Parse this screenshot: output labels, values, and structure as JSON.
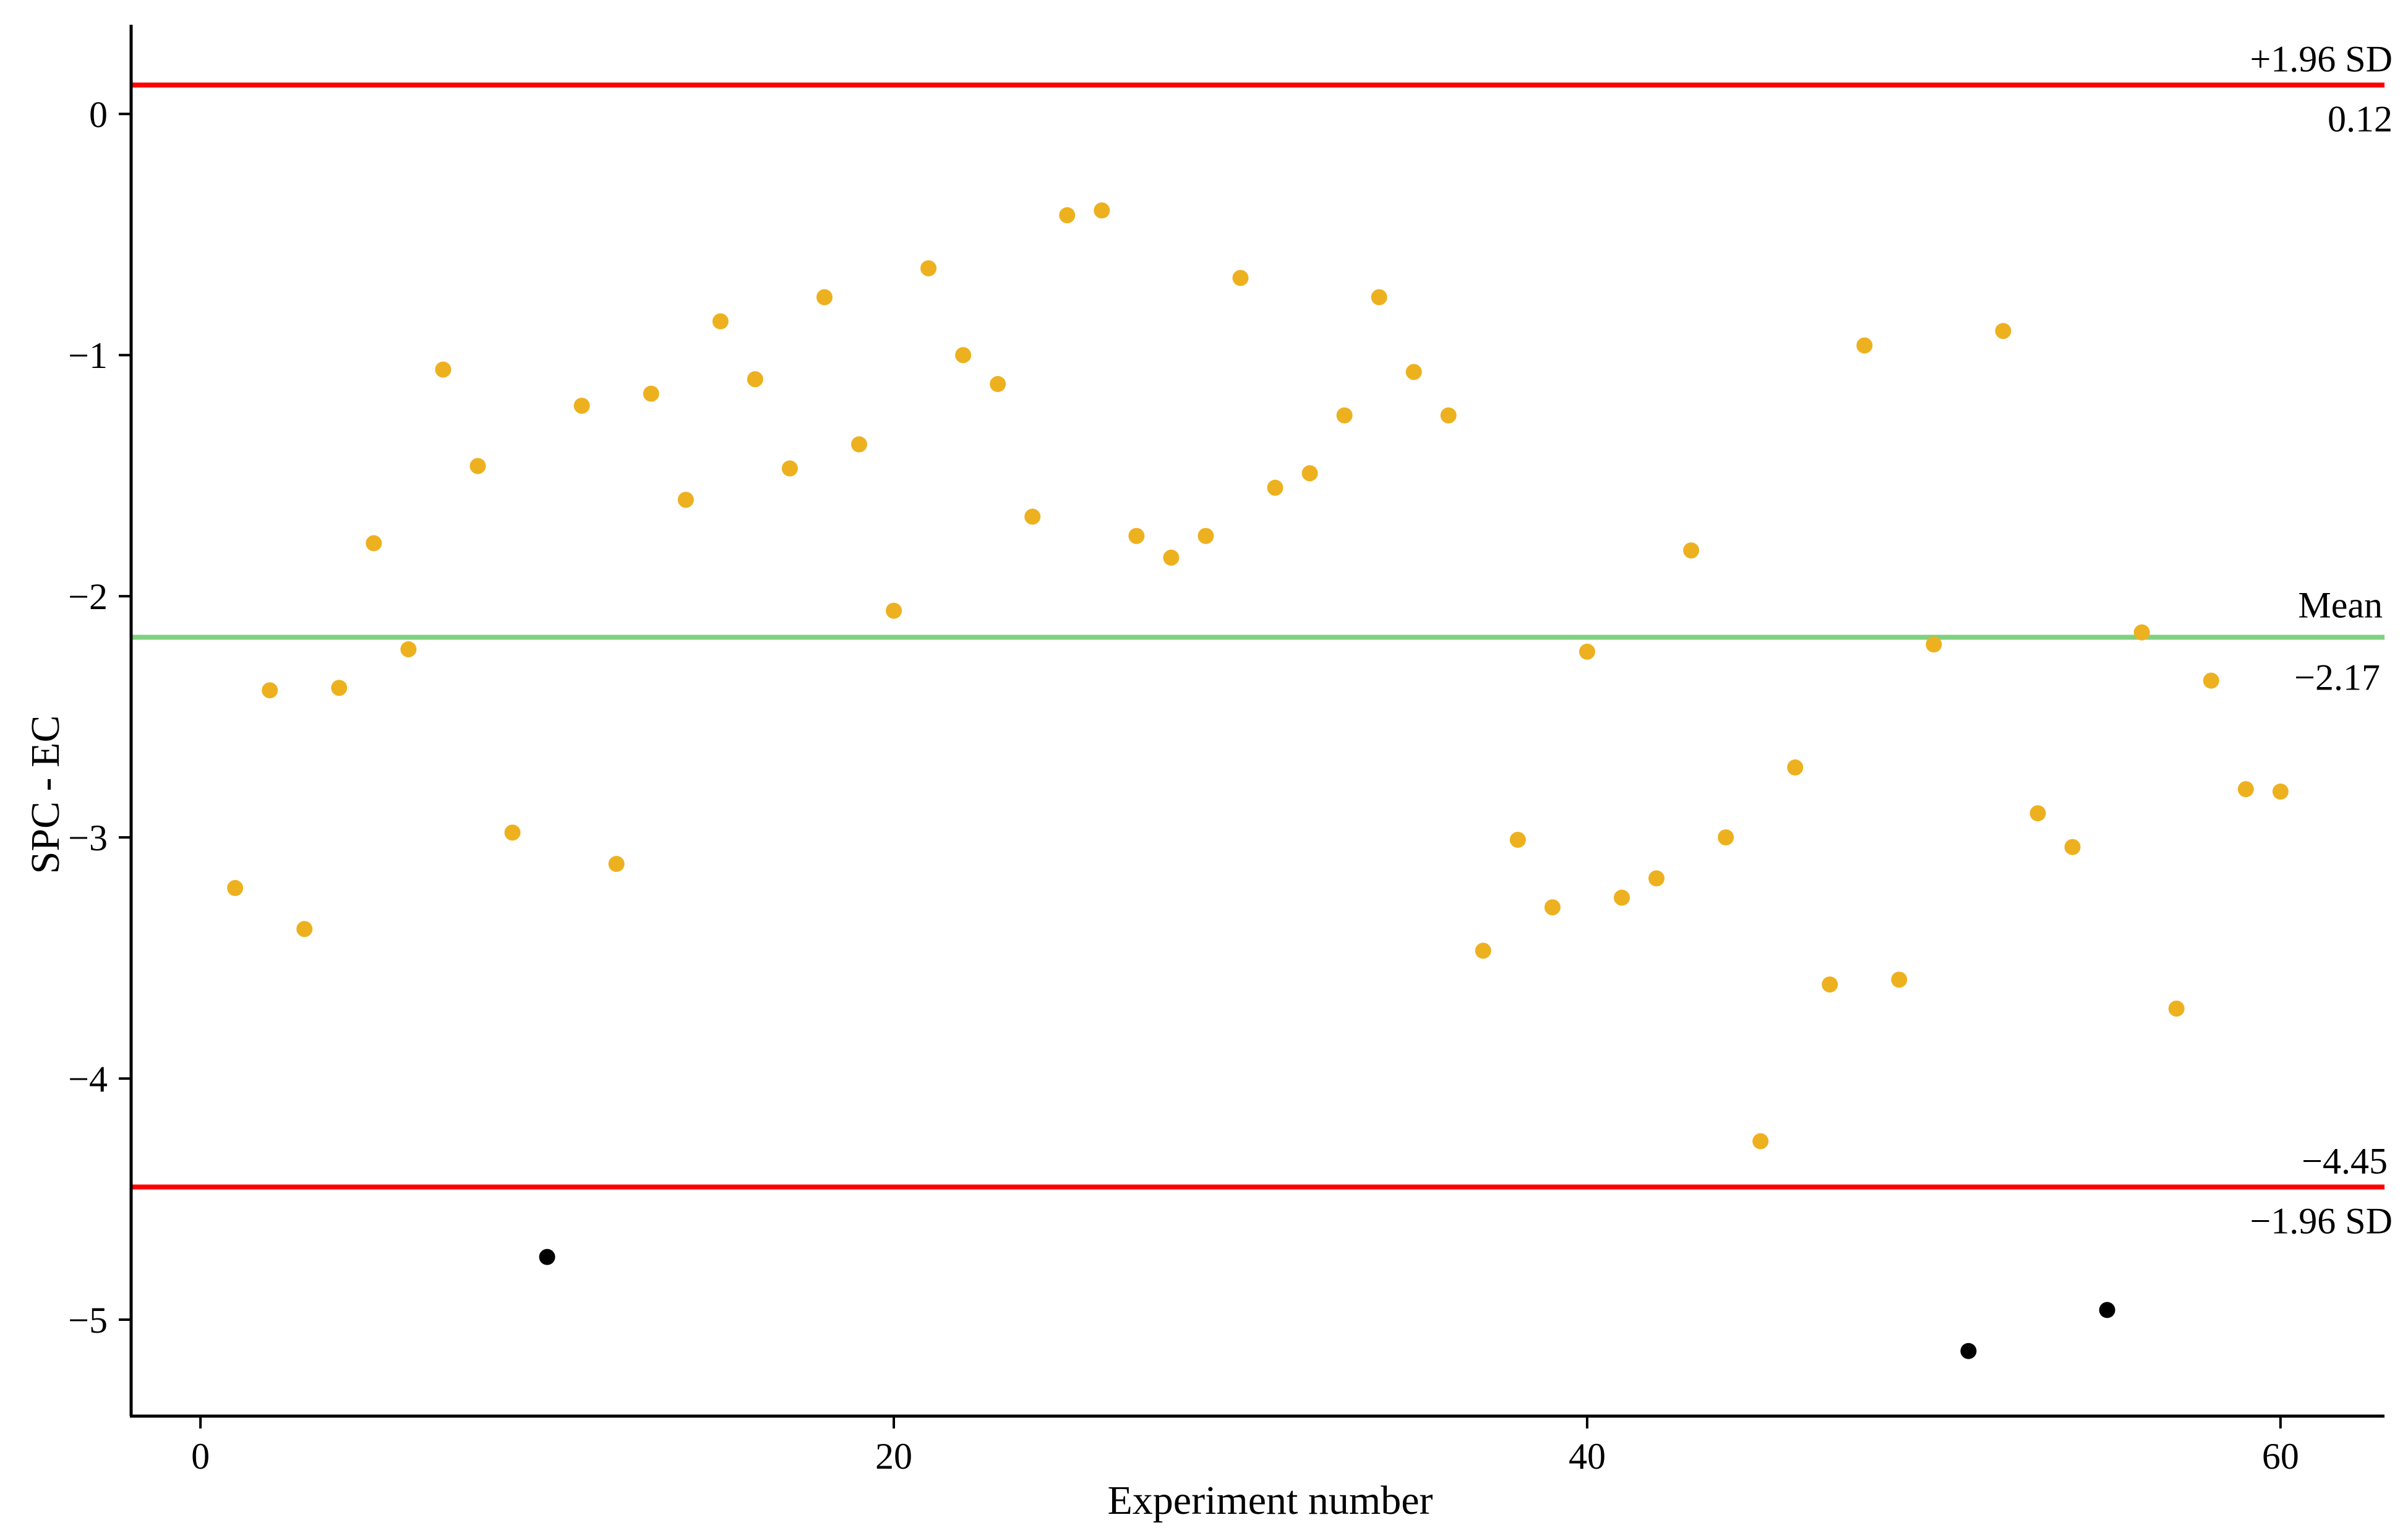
{
  "chart_data": {
    "type": "scatter",
    "xlabel": "Experiment number",
    "ylabel": "SPC - EC",
    "xlim": [
      -2,
      63
    ],
    "ylim": [
      -5.4,
      0.37
    ],
    "x_ticks": [
      0,
      20,
      40,
      60
    ],
    "y_ticks": [
      0,
      -1,
      -2,
      -3,
      -4,
      -5
    ],
    "x_tick_labels": [
      "0",
      "20",
      "40",
      "60"
    ],
    "y_tick_labels": [
      "0",
      "−1",
      "−2",
      "−3",
      "−4",
      "−5"
    ],
    "grid": false,
    "colors": {
      "inside": "#EDB120",
      "outside": "#000000",
      "limits": "#FF0000",
      "mean": "#7FD17F"
    },
    "reference_lines": [
      {
        "id": "upper",
        "value": 0.12,
        "label": "+1.96 SD",
        "value_label": "0.12",
        "color": "#FF0000"
      },
      {
        "id": "mean",
        "value": -2.17,
        "label": "Mean",
        "value_label": "−2.17",
        "color": "#7FD17F"
      },
      {
        "id": "lower",
        "value": -4.45,
        "label": "−1.96 SD",
        "value_label": "−4.45",
        "color": "#FF0000"
      }
    ],
    "points": [
      {
        "x": 1,
        "y": -3.21
      },
      {
        "x": 2,
        "y": -2.39
      },
      {
        "x": 3,
        "y": -3.38
      },
      {
        "x": 4,
        "y": -2.38
      },
      {
        "x": 5,
        "y": -1.78
      },
      {
        "x": 6,
        "y": -2.22
      },
      {
        "x": 7,
        "y": -1.06
      },
      {
        "x": 8,
        "y": -1.46
      },
      {
        "x": 9,
        "y": -2.98
      },
      {
        "x": 10,
        "y": -4.74
      },
      {
        "x": 11,
        "y": -1.21
      },
      {
        "x": 12,
        "y": -3.11
      },
      {
        "x": 13,
        "y": -1.16
      },
      {
        "x": 14,
        "y": -1.6
      },
      {
        "x": 15,
        "y": -0.86
      },
      {
        "x": 16,
        "y": -1.1
      },
      {
        "x": 17,
        "y": -1.47
      },
      {
        "x": 18,
        "y": -0.76
      },
      {
        "x": 19,
        "y": -1.37
      },
      {
        "x": 20,
        "y": -2.06
      },
      {
        "x": 21,
        "y": -0.64
      },
      {
        "x": 22,
        "y": -1.0
      },
      {
        "x": 23,
        "y": -1.12
      },
      {
        "x": 24,
        "y": -1.67
      },
      {
        "x": 25,
        "y": -0.42
      },
      {
        "x": 26,
        "y": -0.4
      },
      {
        "x": 27,
        "y": -1.75
      },
      {
        "x": 28,
        "y": -1.84
      },
      {
        "x": 29,
        "y": -1.75
      },
      {
        "x": 30,
        "y": -0.68
      },
      {
        "x": 31,
        "y": -1.55
      },
      {
        "x": 32,
        "y": -1.49
      },
      {
        "x": 33,
        "y": -1.25
      },
      {
        "x": 34,
        "y": -0.76
      },
      {
        "x": 35,
        "y": -1.07
      },
      {
        "x": 36,
        "y": -1.25
      },
      {
        "x": 37,
        "y": -3.47
      },
      {
        "x": 38,
        "y": -3.01
      },
      {
        "x": 39,
        "y": -3.29
      },
      {
        "x": 40,
        "y": -2.23
      },
      {
        "x": 41,
        "y": -3.25
      },
      {
        "x": 42,
        "y": -3.17
      },
      {
        "x": 43,
        "y": -1.81
      },
      {
        "x": 44,
        "y": -3.0
      },
      {
        "x": 45,
        "y": -4.26
      },
      {
        "x": 46,
        "y": -2.71
      },
      {
        "x": 47,
        "y": -3.61
      },
      {
        "x": 48,
        "y": -0.96
      },
      {
        "x": 49,
        "y": -3.59
      },
      {
        "x": 50,
        "y": -2.2
      },
      {
        "x": 51,
        "y": -5.13
      },
      {
        "x": 52,
        "y": -0.9
      },
      {
        "x": 53,
        "y": -2.9
      },
      {
        "x": 54,
        "y": -3.04
      },
      {
        "x": 55,
        "y": -4.96
      },
      {
        "x": 56,
        "y": -2.15
      },
      {
        "x": 57,
        "y": -3.71
      },
      {
        "x": 58,
        "y": -2.35
      },
      {
        "x": 59,
        "y": -2.8
      },
      {
        "x": 60,
        "y": -2.81
      }
    ]
  }
}
